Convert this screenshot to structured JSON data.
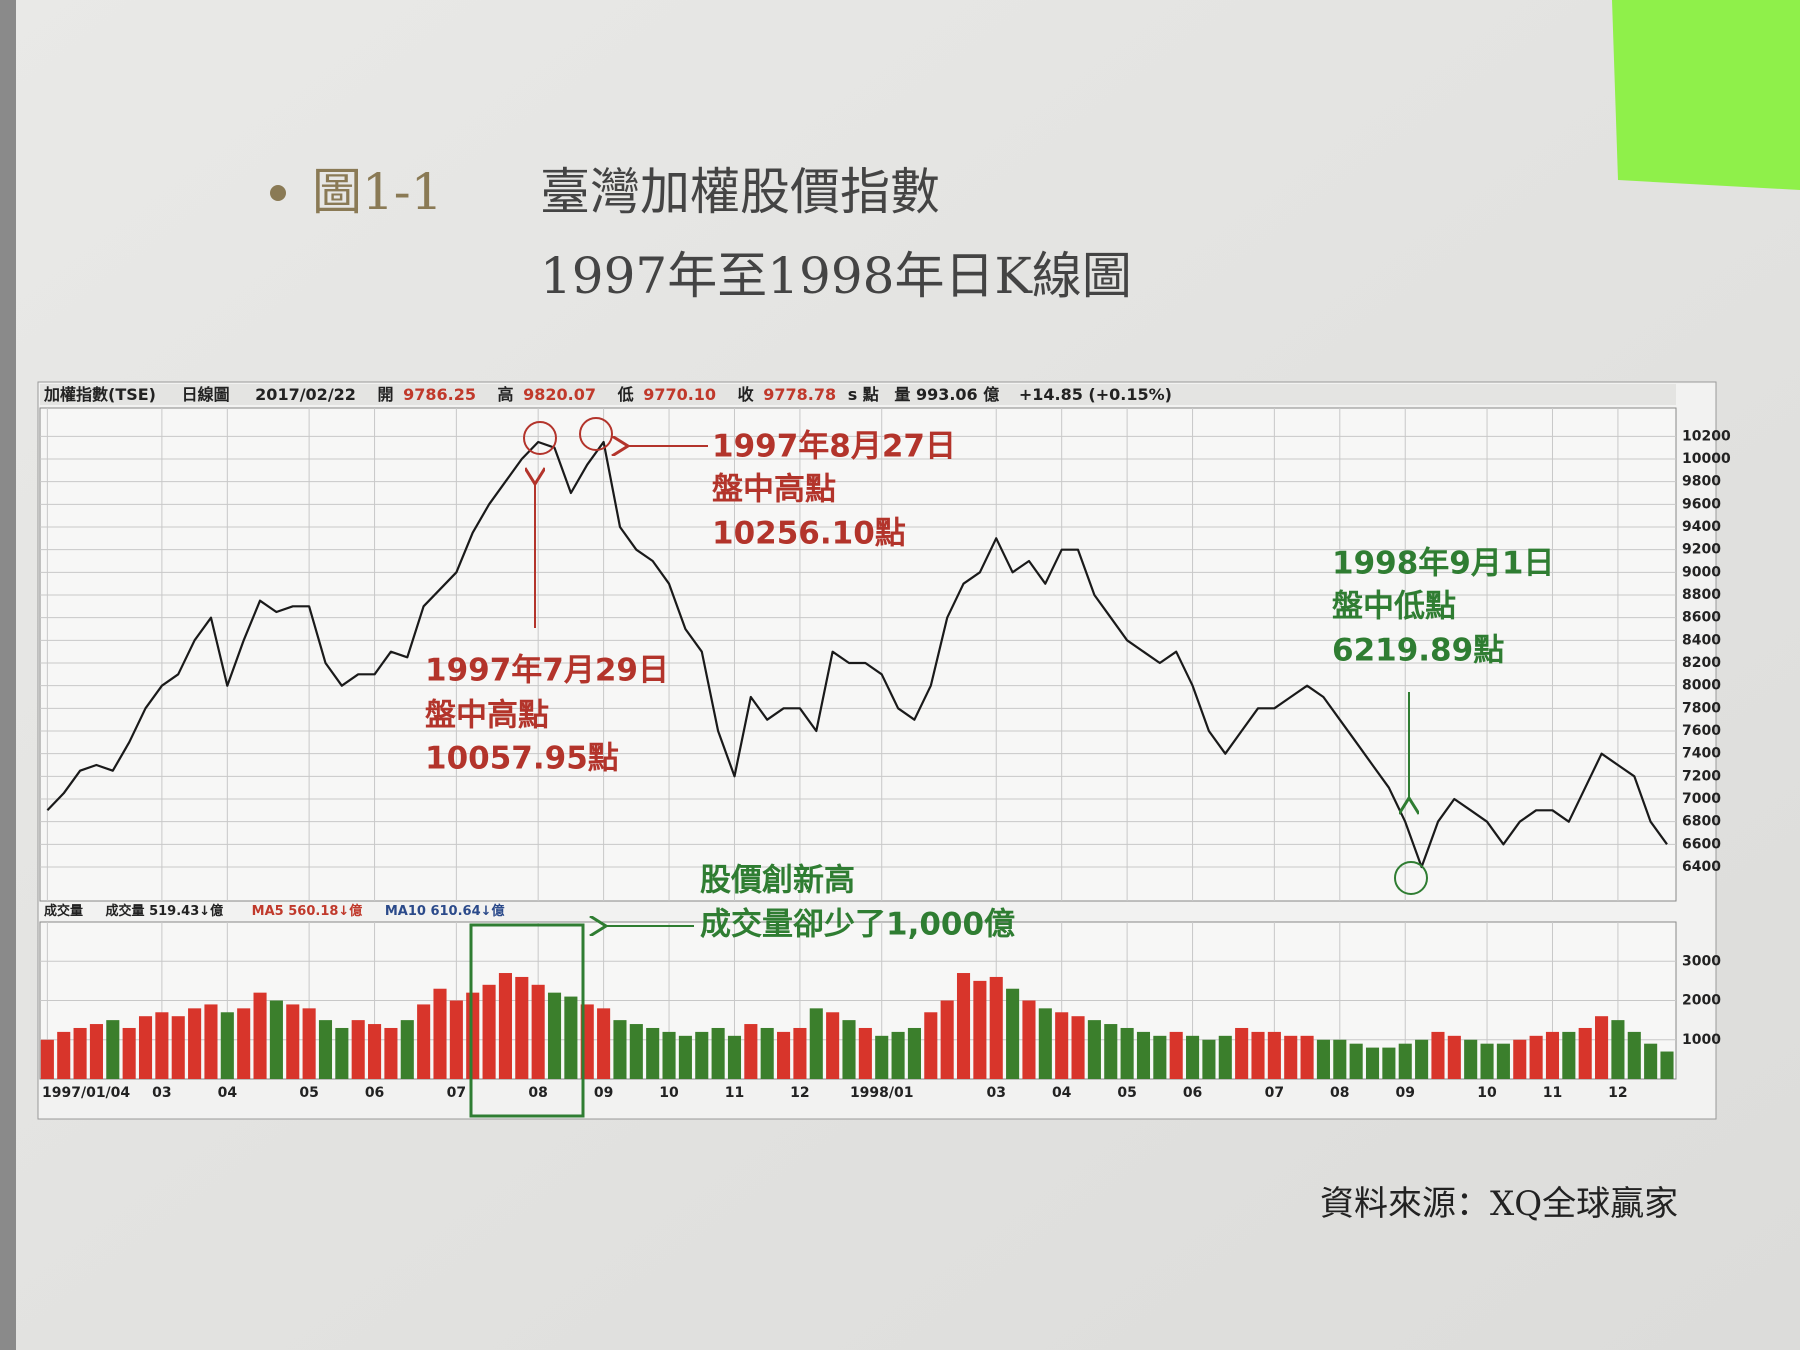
{
  "figure": {
    "label": "圖1-1",
    "title": "臺灣加權股價指數",
    "subtitle": "1997年至1998年日K線圖",
    "source": "資料來源：XQ全球贏家"
  },
  "annotations": {
    "peak_aug": [
      "1997年8月27日",
      "盤中高點",
      "10256.10點"
    ],
    "peak_jul": [
      "1997年7月29日",
      "盤中高點",
      "10057.95點"
    ],
    "low_sep": [
      "1998年9月1日",
      "盤中低點",
      "6219.89點"
    ],
    "volume_note": [
      "股價創新高",
      "成交量卻少了1,000億"
    ]
  },
  "chart_data": [
    {
      "type": "line",
      "color": "#1a1a1a",
      "info_bar": [
        "加權指數(TSE)",
        "日線圖",
        "2017/02/22",
        "開",
        "9786.25",
        "高",
        "9820.07",
        "低",
        "9770.10",
        "收",
        "9778.78",
        "s 點",
        "量 993.06 億",
        "+14.85 (+0.15%)"
      ],
      "values": [
        6900,
        7050,
        7250,
        7300,
        7250,
        7500,
        7800,
        8000,
        8100,
        8400,
        8600,
        8000,
        8400,
        8750,
        8650,
        8700,
        8700,
        8200,
        8000,
        8100,
        8100,
        8300,
        8250,
        8700,
        8850,
        9000,
        9350,
        9600,
        9800,
        10000,
        10150,
        10100,
        9700,
        9950,
        10150,
        9400,
        9200,
        9100,
        8900,
        8500,
        8300,
        7600,
        7200,
        7900,
        7700,
        7800,
        7800,
        7600,
        8300,
        8200,
        8200,
        8100,
        7800,
        7700,
        8000,
        8600,
        8900,
        9000,
        9300,
        9000,
        9100,
        8900,
        9200,
        9200,
        8800,
        8600,
        8400,
        8300,
        8200,
        8300,
        8000,
        7600,
        7400,
        7600,
        7800,
        7800,
        7900,
        8000,
        7900,
        7700,
        7500,
        7300,
        7100,
        6800,
        6400,
        6800,
        7000,
        6900,
        6800,
        6600,
        6800,
        6900,
        6900,
        6800,
        7100,
        7400,
        7300,
        7200,
        6800,
        6600
      ],
      "ylim": [
        6100,
        10450
      ],
      "yticks": [
        6400,
        6600,
        6800,
        7000,
        7200,
        7400,
        7600,
        7800,
        8000,
        8200,
        8400,
        8600,
        8800,
        9000,
        9200,
        9400,
        9600,
        9800,
        10000,
        10200
      ],
      "grid": true
    },
    {
      "type": "bar",
      "up_color": "#d8352b",
      "down_color": "#3b7f2c",
      "info_bar": [
        "成交量",
        "成交量 519.43↓億",
        "MA5 560.18↓億",
        "MA10 610.64↓億"
      ],
      "categories": [
        "1997/01/04",
        null,
        null,
        null,
        null,
        null,
        null,
        "03",
        null,
        null,
        null,
        "04",
        null,
        null,
        null,
        null,
        "05",
        null,
        null,
        null,
        "06",
        null,
        null,
        null,
        null,
        "07",
        null,
        null,
        null,
        null,
        "08",
        null,
        null,
        null,
        "09",
        null,
        null,
        null,
        "10",
        null,
        null,
        null,
        "11",
        null,
        null,
        null,
        "12",
        null,
        null,
        null,
        null,
        "1998/01",
        null,
        null,
        null,
        null,
        null,
        null,
        "03",
        null,
        null,
        null,
        "04",
        null,
        null,
        null,
        "05",
        null,
        null,
        null,
        "06",
        null,
        null,
        null,
        null,
        "07",
        null,
        null,
        null,
        "08",
        null,
        null,
        null,
        "09",
        null,
        null,
        null,
        null,
        "10",
        null,
        null,
        null,
        "11",
        null,
        null,
        null,
        "12",
        null,
        null,
        null
      ],
      "values": [
        1000,
        1200,
        1300,
        1400,
        1500,
        1300,
        1600,
        1700,
        1600,
        1800,
        1900,
        1700,
        1800,
        2200,
        2000,
        1900,
        1800,
        1500,
        1300,
        1500,
        1400,
        1300,
        1500,
        1900,
        2300,
        2000,
        2200,
        2400,
        2700,
        2600,
        2400,
        2200,
        2100,
        1900,
        1800,
        1500,
        1400,
        1300,
        1200,
        1100,
        1200,
        1300,
        1100,
        1400,
        1300,
        1200,
        1300,
        1800,
        1700,
        1500,
        1300,
        1100,
        1200,
        1300,
        1700,
        2000,
        2700,
        2500,
        2600,
        2300,
        2000,
        1800,
        1700,
        1600,
        1500,
        1400,
        1300,
        1200,
        1100,
        1200,
        1100,
        1000,
        1100,
        1300,
        1200,
        1200,
        1100,
        1100,
        1000,
        1000,
        900,
        800,
        800,
        900,
        1000,
        1200,
        1100,
        1000,
        900,
        900,
        1000,
        1100,
        1200,
        1200,
        1300,
        1600,
        1500,
        1200,
        900,
        700
      ],
      "ylim": [
        0,
        4000
      ],
      "yticks": [
        1000,
        2000,
        3000
      ],
      "grid": true
    }
  ]
}
